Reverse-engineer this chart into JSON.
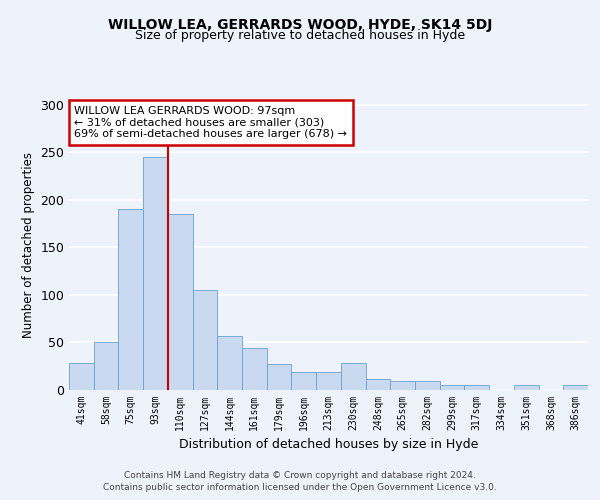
{
  "title": "WILLOW LEA, GERRARDS WOOD, HYDE, SK14 5DJ",
  "subtitle": "Size of property relative to detached houses in Hyde",
  "xlabel": "Distribution of detached houses by size in Hyde",
  "ylabel": "Number of detached properties",
  "bar_color": "#c8d9f0",
  "bar_edge_color": "#6a9fd4",
  "background_color": "#eef2fa",
  "grid_color": "#ffffff",
  "bin_labels": [
    "41sqm",
    "58sqm",
    "75sqm",
    "93sqm",
    "110sqm",
    "127sqm",
    "144sqm",
    "161sqm",
    "179sqm",
    "196sqm",
    "213sqm",
    "230sqm",
    "248sqm",
    "265sqm",
    "282sqm",
    "299sqm",
    "317sqm",
    "334sqm",
    "351sqm",
    "368sqm",
    "386sqm"
  ],
  "bar_heights": [
    28,
    50,
    190,
    245,
    185,
    105,
    57,
    44,
    27,
    19,
    19,
    28,
    12,
    9,
    9,
    5,
    5,
    0,
    5,
    0,
    5
  ],
  "ylim": [
    0,
    305
  ],
  "yticks": [
    0,
    50,
    100,
    150,
    200,
    250,
    300
  ],
  "property_bin_index": 3,
  "red_line_x": 3.5,
  "annotation_title": "WILLOW LEA GERRARDS WOOD: 97sqm",
  "annotation_line1": "← 31% of detached houses are smaller (303)",
  "annotation_line2": "69% of semi-detached houses are larger (678) →",
  "annotation_box_color": "#ffffff",
  "annotation_box_edge": "#cc0000",
  "red_line_color": "#cc0000",
  "footer1": "Contains HM Land Registry data © Crown copyright and database right 2024.",
  "footer2": "Contains public sector information licensed under the Open Government Licence v3.0."
}
